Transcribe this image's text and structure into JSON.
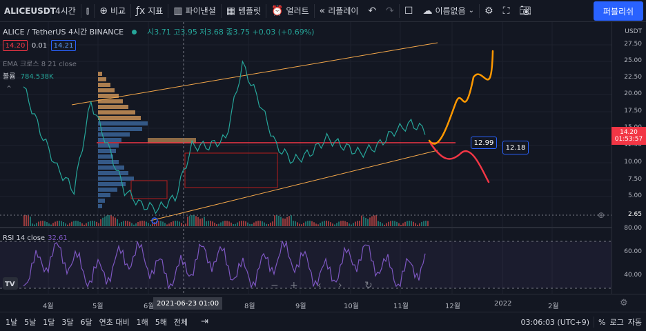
{
  "toolbar": {
    "symbol": "ALICEUSDT",
    "interval": "4시간",
    "compare": "비교",
    "indicators": "지표",
    "financials": "파이낸셜",
    "templates": "템플릿",
    "alert": "얼러트",
    "replay": "리플레이",
    "layout_name": "이름없음",
    "publish": "퍼블리쉬"
  },
  "legend": {
    "symbol": "ALICE / TetherUS  4시간  BINANCE",
    "ohlc": "시3.71 고3.95 저3.68 종3.75 +0.03 (+0.69%)",
    "bid": "14.20",
    "spread": "0.01",
    "ask": "14.21",
    "ema": "EMA 크로스 8 21 close",
    "volume_label": "볼륨",
    "volume_value": "784.538K"
  },
  "rsi": {
    "label": "RSI 14 close",
    "value": "32.61"
  },
  "price_axis": {
    "unit": "USDT",
    "labels": [
      "27.50",
      "25.00",
      "22.50",
      "20.00",
      "17.50",
      "15.00",
      "12.50",
      "10.00",
      "7.50",
      "5.00",
      "2.65"
    ],
    "current_price": "14.20",
    "countdown": "01:53:57",
    "rsi_labels": [
      "80.00",
      "60.00",
      "40.00"
    ]
  },
  "callouts": {
    "a": "12.99",
    "b": "12.18"
  },
  "time_axis": {
    "labels": [
      "4월",
      "5월",
      "6월",
      "8월",
      "9월",
      "10월",
      "11월",
      "12월",
      "2022",
      "2월"
    ],
    "hover": "2021-06-23  01:00"
  },
  "bottom_bar": {
    "ranges": [
      "1날",
      "5날",
      "1달",
      "3달",
      "6달",
      "연초 대비",
      "1해",
      "5해",
      "전체"
    ],
    "clock": "03:06:03 (UTC+9)",
    "percent": "%",
    "log": "로그",
    "auto": "자동"
  },
  "colors": {
    "bg": "#131722",
    "up": "#26a69a",
    "down": "#ef5350",
    "accent": "#2962ff",
    "rsi": "#7e57c2",
    "orange": "#ff9800"
  },
  "chart_data": {
    "type": "line",
    "title": "",
    "xlabel": "",
    "ylabel": "",
    "ylim": [
      2.65,
      28
    ],
    "series": [
      {
        "values": [
          20,
          14,
          9,
          6,
          18,
          12,
          6,
          4,
          3.5,
          5,
          12,
          12,
          13,
          23,
          18,
          12,
          10,
          11,
          13,
          12,
          11,
          12,
          14,
          15,
          14
        ]
      }
    ]
  }
}
